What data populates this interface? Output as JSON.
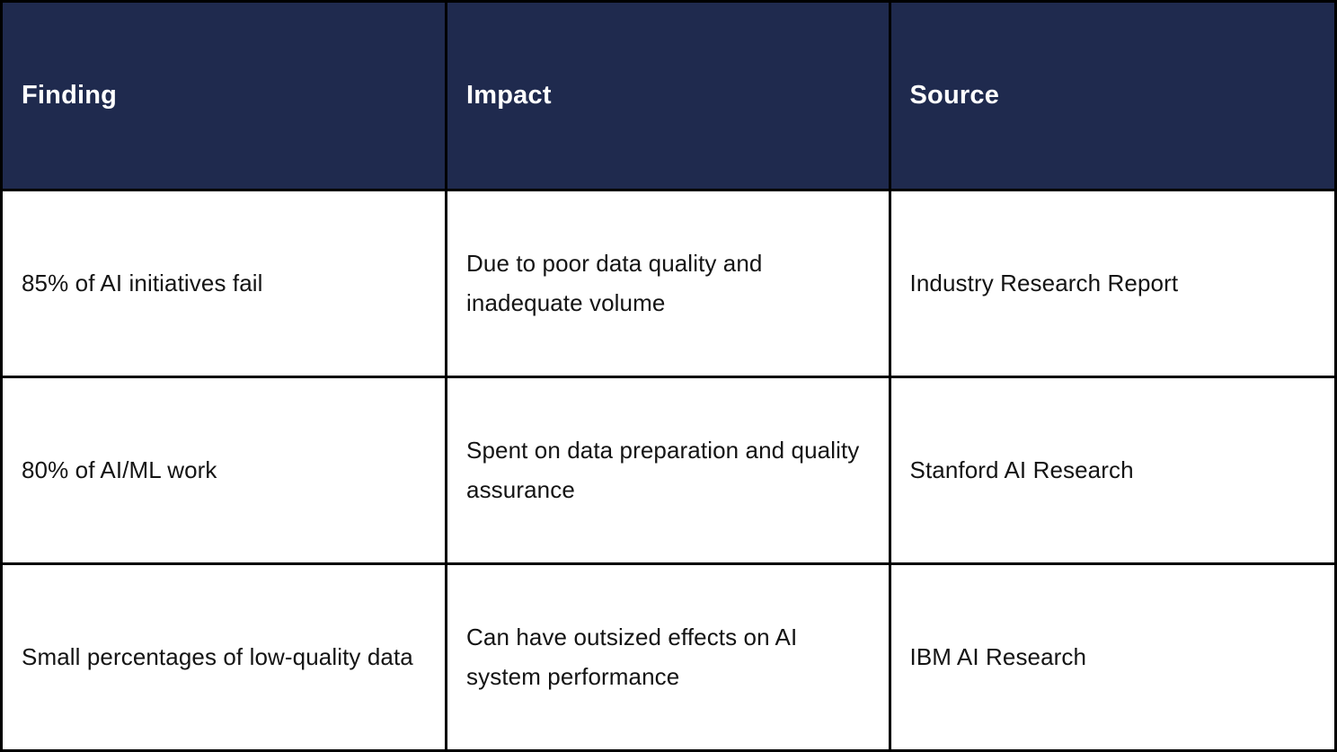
{
  "chart_data": {
    "type": "table",
    "columns": [
      "Finding",
      "Impact",
      "Source"
    ],
    "rows": [
      [
        "85% of AI initiatives fail",
        "Due to poor data quality and inadequate volume",
        "Industry Research Report"
      ],
      [
        "80% of AI/ML work",
        "Spent on data preparation and quality assurance",
        "Stanford AI Research"
      ],
      [
        "Small percentages of low-quality data",
        "Can have outsized effects on AI system performance",
        "IBM AI Research"
      ]
    ],
    "title": "",
    "layout": {
      "header_position": "top",
      "grid": true
    }
  },
  "table": {
    "header": {
      "finding": "Finding",
      "impact": "Impact",
      "source": "Source"
    },
    "rows": [
      {
        "finding": "85% of AI initiatives fail",
        "impact": "Due to poor data quality and inadequate volume",
        "source": "Industry Research Report"
      },
      {
        "finding": "80% of AI/ML work",
        "impact": "Spent on data preparation and quality assurance",
        "source": "Stanford AI Research"
      },
      {
        "finding": "Small percentages of low-quality data",
        "impact": "Can have outsized effects on AI system performance",
        "source": "IBM AI Research"
      }
    ],
    "colors": {
      "header_bg": "#1f2a4e",
      "header_text": "#ffffff",
      "body_text": "#141414",
      "border": "#000000",
      "row_bg": "#ffffff"
    }
  }
}
